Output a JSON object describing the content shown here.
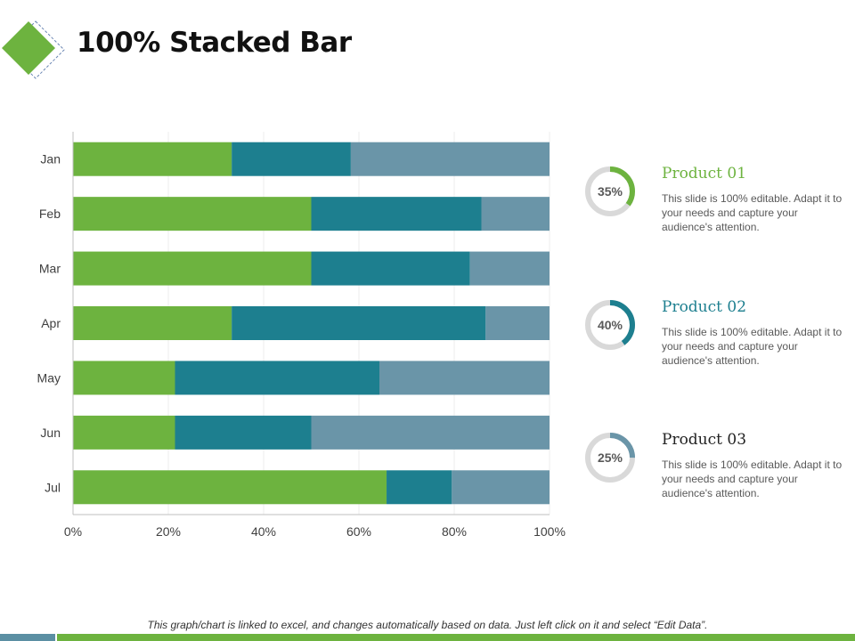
{
  "title": "100% Stacked Bar",
  "colors": {
    "green": "#6db33f",
    "teal": "#1d7f8f",
    "slate": "#6a95a8",
    "ring": "#d9d9d9"
  },
  "chart_data": {
    "type": "bar",
    "orientation": "horizontal",
    "stacked": "percent",
    "categories": [
      "Jan",
      "Feb",
      "Mar",
      "Apr",
      "May",
      "Jun",
      "Jul"
    ],
    "series": [
      {
        "name": "Product 01",
        "color": "#6db33f",
        "values": [
          33.3,
          50,
          50,
          33.3,
          21.4,
          21.4,
          65.8
        ]
      },
      {
        "name": "Product 02",
        "color": "#1d7f8f",
        "values": [
          25,
          35.7,
          33.3,
          53.3,
          42.9,
          28.6,
          13.7
        ]
      },
      {
        "name": "Product 03",
        "color": "#6a95a8",
        "values": [
          41.7,
          14.3,
          16.7,
          13.4,
          35.7,
          50,
          20.5
        ]
      }
    ],
    "xlim": [
      0,
      100
    ],
    "xticks": [
      "0%",
      "20%",
      "40%",
      "60%",
      "80%",
      "100%"
    ],
    "grid": true,
    "xlabel": "",
    "ylabel": ""
  },
  "products": [
    {
      "name": "Product 01",
      "percent": 35,
      "percent_label": "35%",
      "color": "#6db33f",
      "name_color": "#6db33f",
      "description": "This slide is 100% editable. Adapt it to your needs and capture your audience's attention."
    },
    {
      "name": "Product 02",
      "percent": 40,
      "percent_label": "40%",
      "color": "#1d7f8f",
      "name_color": "#1d7f8f",
      "description": "This slide is 100% editable. Adapt it to your needs and capture your audience's attention."
    },
    {
      "name": "Product 03",
      "percent": 25,
      "percent_label": "25%",
      "color": "#6a95a8",
      "name_color": "#222222",
      "description": "This slide is 100% editable. Adapt it to your needs and capture your audience's attention."
    }
  ],
  "footer": {
    "note": "This graph/chart is linked to excel, and changes automatically  based on data.  Just left click on it and select “Edit Data”."
  }
}
